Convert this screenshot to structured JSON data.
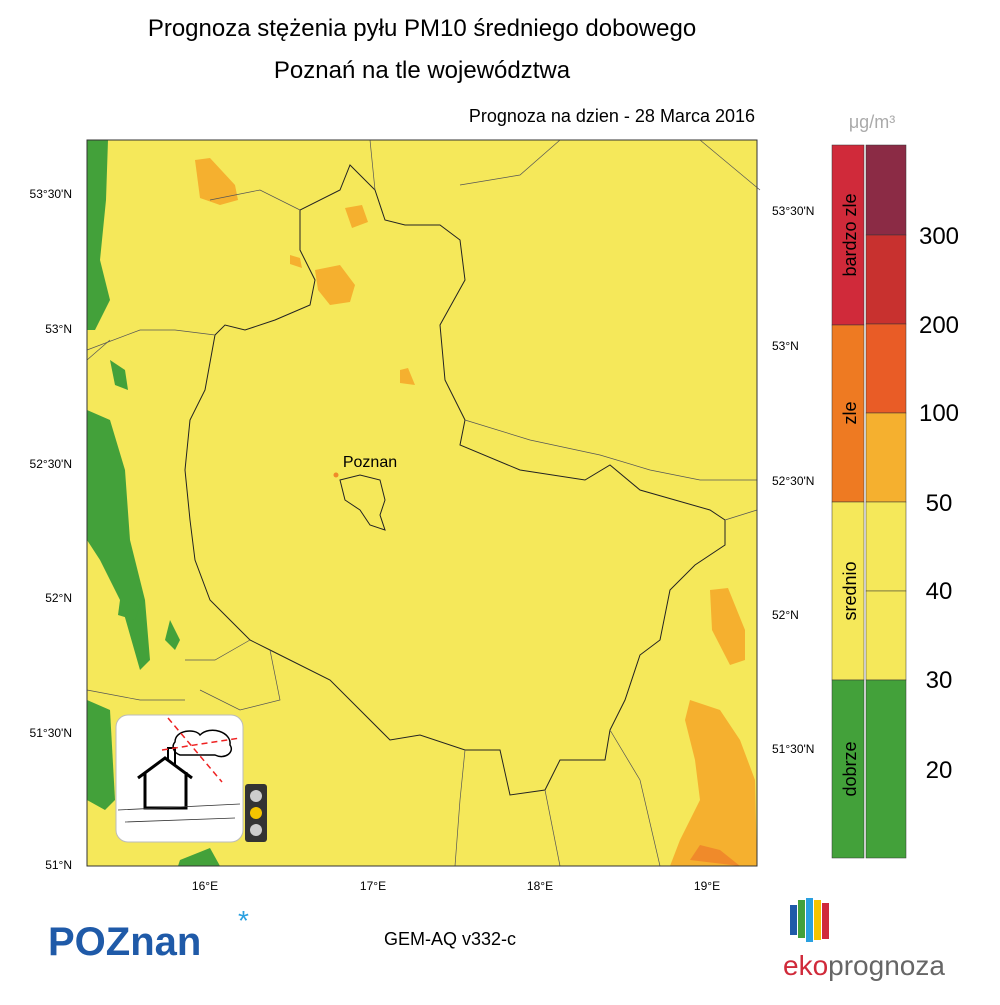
{
  "header": {
    "title": "Prognoza stężenia pyłu PM10 średniego dobowego",
    "subtitle": "Poznań na tle województwa",
    "date": "Prognoza na dzien -  28 Marca 2016"
  },
  "map": {
    "left_lat_labels": [
      "53°30'N",
      "53°N",
      "52°30'N",
      "52°N",
      "51°30'N",
      "51°N"
    ],
    "right_lat_labels": [
      "53°30'N",
      "53°N",
      "52°30'N",
      "52°N",
      "51°30'N"
    ],
    "lon_labels": [
      "16°E",
      "17°E",
      "18°E",
      "19°E"
    ],
    "city": "Poznan"
  },
  "legend": {
    "unit": "μg/m³",
    "categories": [
      "bardzo zle",
      "zle",
      "srednio",
      "dobrze"
    ],
    "levels": [
      "300",
      "200",
      "100",
      "50",
      "40",
      "30",
      "20"
    ]
  },
  "footer": {
    "logo": "POZnan",
    "model": "GEM-AQ v332-c",
    "brand_left": "eko",
    "brand_right": "prognoza"
  }
}
